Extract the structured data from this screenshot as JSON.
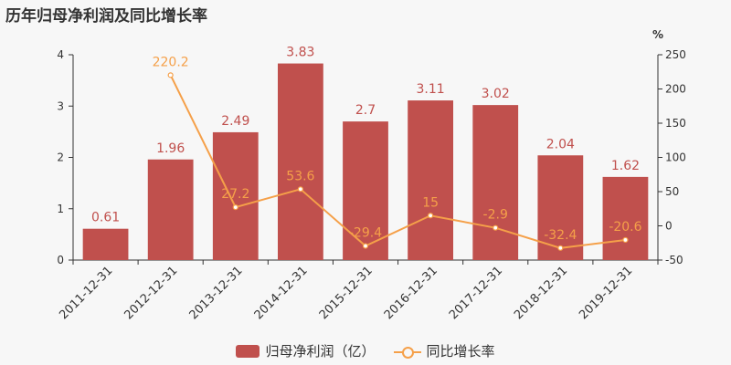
{
  "title": "历年归母净利润及同比增长率",
  "colors": {
    "bar": "#c0504d",
    "line": "#f5a049",
    "axis": "#333333",
    "grid": "#e3e3e3"
  },
  "chart_data": {
    "type": "bar",
    "title": "历年归母净利润及同比增长率",
    "categories": [
      "2011-12-31",
      "2012-12-31",
      "2013-12-31",
      "2014-12-31",
      "2015-12-31",
      "2016-12-31",
      "2017-12-31",
      "2018-12-31",
      "2019-12-31"
    ],
    "y_left": {
      "ylim": [
        0,
        4
      ],
      "ticks": [
        0,
        1,
        2,
        3,
        4
      ]
    },
    "y_right": {
      "unit": "%",
      "ylim": [
        -50,
        250
      ],
      "ticks": [
        -50,
        0,
        50,
        100,
        150,
        200,
        250
      ]
    },
    "series": [
      {
        "name": "归母净利润（亿）",
        "type": "bar",
        "axis": "left",
        "values": [
          0.61,
          1.96,
          2.49,
          3.83,
          2.7,
          3.11,
          3.02,
          2.04,
          1.62
        ],
        "labels": [
          "0.61",
          "1.96",
          "2.49",
          "3.83",
          "2.7",
          "3.11",
          "3.02",
          "2.04",
          "1.62"
        ]
      },
      {
        "name": "同比增长率",
        "type": "line",
        "axis": "right",
        "values": [
          null,
          220.2,
          27.2,
          53.6,
          -29.4,
          15,
          -2.9,
          -32.4,
          -20.6
        ],
        "labels": [
          "",
          "220.2",
          "27.2",
          "53.6",
          "-29.4",
          "15",
          "-2.9",
          "-32.4",
          "-20.6"
        ]
      }
    ],
    "legend": "bottom-center",
    "grid": false
  }
}
